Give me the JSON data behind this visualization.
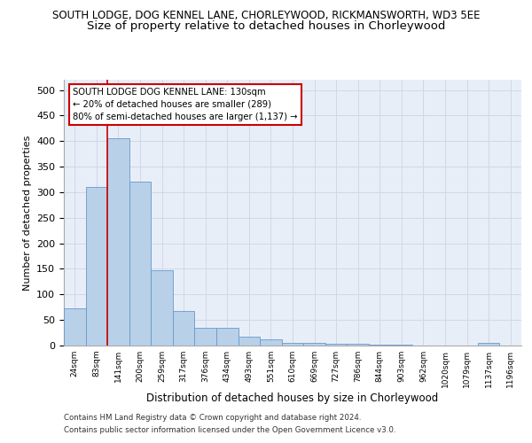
{
  "title1": "SOUTH LODGE, DOG KENNEL LANE, CHORLEYWOOD, RICKMANSWORTH, WD3 5EE",
  "title2": "Size of property relative to detached houses in Chorleywood",
  "xlabel": "Distribution of detached houses by size in Chorleywood",
  "ylabel": "Number of detached properties",
  "categories": [
    "24sqm",
    "83sqm",
    "141sqm",
    "200sqm",
    "259sqm",
    "317sqm",
    "376sqm",
    "434sqm",
    "493sqm",
    "551sqm",
    "610sqm",
    "669sqm",
    "727sqm",
    "786sqm",
    "844sqm",
    "903sqm",
    "962sqm",
    "1020sqm",
    "1079sqm",
    "1137sqm",
    "1196sqm"
  ],
  "values": [
    72,
    310,
    405,
    320,
    147,
    68,
    35,
    35,
    18,
    12,
    6,
    5,
    3,
    3,
    1,
    1,
    0,
    0,
    0,
    5,
    0
  ],
  "bar_color": "#b8d0e8",
  "bar_edge_color": "#6699cc",
  "vline_color": "#cc0000",
  "annotation_title": "SOUTH LODGE DOG KENNEL LANE: 130sqm",
  "annotation_line2": "← 20% of detached houses are smaller (289)",
  "annotation_line3": "80% of semi-detached houses are larger (1,137) →",
  "annotation_box_color": "#ffffff",
  "annotation_box_edge": "#cc0000",
  "footer1": "Contains HM Land Registry data © Crown copyright and database right 2024.",
  "footer2": "Contains public sector information licensed under the Open Government Licence v3.0.",
  "ylim": [
    0,
    520
  ],
  "yticks": [
    0,
    50,
    100,
    150,
    200,
    250,
    300,
    350,
    400,
    450,
    500
  ],
  "grid_color": "#d0d8e8",
  "bg_color": "#e8eef8",
  "title1_fontsize": 8.5,
  "title2_fontsize": 9.5
}
